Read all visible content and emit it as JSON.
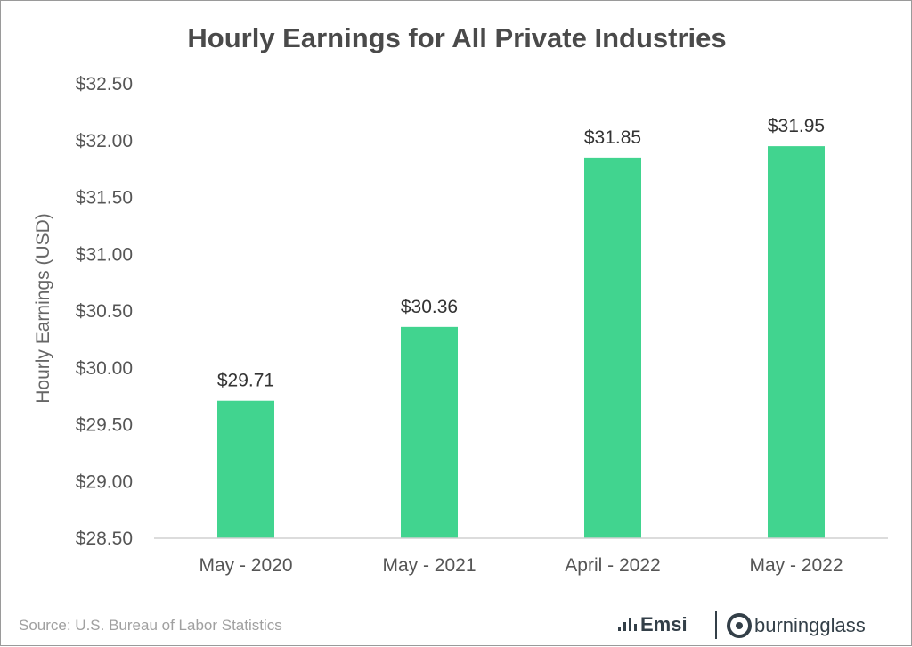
{
  "chart_data": {
    "type": "bar",
    "title": "Hourly Earnings for All Private Industries",
    "xlabel": "",
    "ylabel": "Hourly Earnings (USD)",
    "categories": [
      "May - 2020",
      "May - 2021",
      "April - 2022",
      "May - 2022"
    ],
    "values": [
      29.71,
      30.36,
      31.85,
      31.95
    ],
    "data_labels": [
      "$29.71",
      "$30.36",
      "$31.85",
      "$31.95"
    ],
    "ylim": [
      28.5,
      32.5
    ],
    "yticks": [
      28.5,
      29.0,
      29.5,
      30.0,
      30.5,
      31.0,
      31.5,
      32.0,
      32.5
    ],
    "ytick_labels": [
      "$28.50",
      "$29.00",
      "$29.50",
      "$30.00",
      "$30.50",
      "$31.00",
      "$31.50",
      "$32.00",
      "$32.50"
    ],
    "grid": false,
    "bar_color": "#41d48f"
  },
  "footer": {
    "source": "Source:  U.S. Bureau of Labor Statistics",
    "brand_emsi": "Emsi",
    "brand_burningglass": "burningglass"
  },
  "colors": {
    "bar": "#41d48f",
    "brand": "#333f48"
  }
}
